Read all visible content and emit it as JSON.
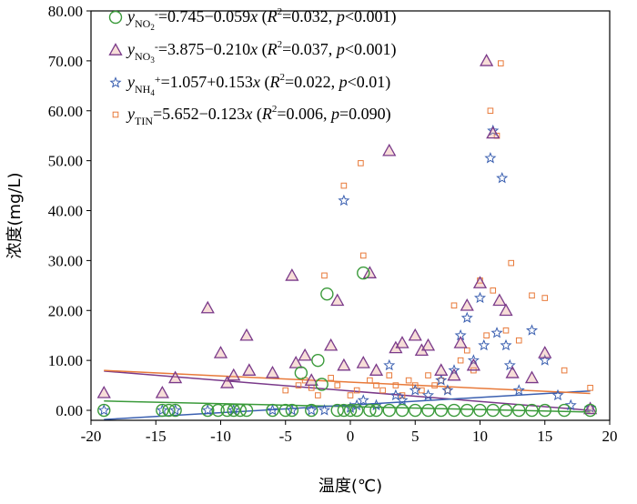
{
  "chart_data": {
    "type": "scatter",
    "xlabel": "温度(℃)",
    "ylabel": "浓度(mg/L)",
    "xlim": [
      -20,
      20
    ],
    "ylim": [
      -2,
      80
    ],
    "x_ticks": [
      -20,
      -15,
      -10,
      -5,
      0,
      5,
      10,
      15,
      20
    ],
    "x_tick_labels": [
      "-20",
      "-15",
      "-10",
      "-5",
      "0",
      "5",
      "10",
      "15",
      "20"
    ],
    "y_ticks": [
      0,
      10,
      20,
      30,
      40,
      50,
      60,
      70,
      80
    ],
    "y_tick_labels": [
      "0.00",
      "10.00",
      "20.00",
      "30.00",
      "40.00",
      "50.00",
      "60.00",
      "70.00",
      "80.00"
    ],
    "legend_placement": "top-left",
    "series": [
      {
        "key": "no2",
        "legend": {
          "y": "y",
          "sub": "NO",
          "sub2": "2",
          "sup": "-",
          "eq": "=0.745−0.059",
          "x": "x",
          "r2": "R",
          "r2sup": "2",
          "stat": "=0.032, ",
          "p": "p",
          "pstat": "<0.001)"
        },
        "color": "#3a9a3a",
        "marker": "circle",
        "fit": {
          "intercept": 0.745,
          "slope": -0.059,
          "x_range": [
            -19,
            18.5
          ]
        },
        "points": [
          [
            -19,
            0
          ],
          [
            -14.5,
            0
          ],
          [
            -14,
            0
          ],
          [
            -13.5,
            0
          ],
          [
            -11,
            0
          ],
          [
            -10.2,
            0
          ],
          [
            -9.5,
            0
          ],
          [
            -9,
            0
          ],
          [
            -8.5,
            0
          ],
          [
            -8,
            0
          ],
          [
            -6,
            0
          ],
          [
            -5,
            0
          ],
          [
            -4.5,
            0
          ],
          [
            -3.8,
            7.5
          ],
          [
            -3,
            0
          ],
          [
            -2.5,
            10
          ],
          [
            -2.2,
            5.2
          ],
          [
            -1.8,
            23.3
          ],
          [
            -1,
            0
          ],
          [
            -0.5,
            0
          ],
          [
            0,
            0
          ],
          [
            0.5,
            0
          ],
          [
            1,
            27.5
          ],
          [
            1.5,
            0
          ],
          [
            2,
            0
          ],
          [
            3,
            0
          ],
          [
            4,
            0
          ],
          [
            5,
            0
          ],
          [
            6,
            0
          ],
          [
            7,
            0
          ],
          [
            8,
            0
          ],
          [
            9,
            0
          ],
          [
            10,
            0
          ],
          [
            11,
            0
          ],
          [
            12,
            0
          ],
          [
            13,
            0
          ],
          [
            14,
            0
          ],
          [
            15,
            0
          ],
          [
            16.5,
            0
          ],
          [
            18.5,
            0
          ]
        ]
      },
      {
        "key": "no3",
        "legend": {
          "y": "y",
          "sub": "NO",
          "sub2": "3",
          "sup": "-",
          "eq": "=3.875−0.210",
          "x": "x",
          "r2": "R",
          "r2sup": "2",
          "stat": "=0.037, ",
          "p": "p",
          "pstat": "<0.001)"
        },
        "color": "#7a3a8a",
        "fill": "#e8a090",
        "marker": "triangle",
        "fit": {
          "intercept": 3.875,
          "slope": -0.21,
          "x_range": [
            -19,
            18.5
          ]
        },
        "points": [
          [
            -19,
            3.5
          ],
          [
            -14.5,
            3.5
          ],
          [
            -13.5,
            6.5
          ],
          [
            -11,
            20.5
          ],
          [
            -10,
            11.5
          ],
          [
            -9.5,
            5.5
          ],
          [
            -9,
            7
          ],
          [
            -8,
            15
          ],
          [
            -7.8,
            8
          ],
          [
            -6,
            7.5
          ],
          [
            -4.5,
            27
          ],
          [
            -4.2,
            9.5
          ],
          [
            -3.5,
            11
          ],
          [
            -3,
            6
          ],
          [
            -1.5,
            13
          ],
          [
            -1,
            22
          ],
          [
            -0.5,
            9
          ],
          [
            1,
            9.5
          ],
          [
            1.5,
            27.5
          ],
          [
            2,
            8
          ],
          [
            3,
            52
          ],
          [
            3.5,
            12.5
          ],
          [
            4,
            13.5
          ],
          [
            5,
            15
          ],
          [
            5.5,
            12
          ],
          [
            6,
            13
          ],
          [
            7,
            8
          ],
          [
            8,
            7
          ],
          [
            8.5,
            13.5
          ],
          [
            9,
            21
          ],
          [
            9.5,
            9
          ],
          [
            10,
            25.5
          ],
          [
            10.5,
            70
          ],
          [
            11,
            55.5
          ],
          [
            11.5,
            22
          ],
          [
            12,
            20
          ],
          [
            12.5,
            7.5
          ],
          [
            14,
            6.5
          ],
          [
            15,
            11.5
          ],
          [
            18.5,
            0.3
          ]
        ]
      },
      {
        "key": "nh4",
        "legend": {
          "y": "y",
          "sub": "NH",
          "sub2": "4",
          "sup": "+",
          "eq": "=1.057+0.153",
          "x": "x",
          "r2": "R",
          "r2sup": "2",
          "stat": "=0.022, ",
          "p": "p",
          "pstat": "<0.01)"
        },
        "color": "#3a5fb0",
        "marker": "star",
        "fit": {
          "intercept": 1.057,
          "slope": 0.153,
          "x_range": [
            -19,
            18.5
          ]
        },
        "points": [
          [
            -19,
            0
          ],
          [
            -14.5,
            0
          ],
          [
            -13.5,
            0
          ],
          [
            -11,
            0
          ],
          [
            -9,
            0
          ],
          [
            -6,
            0
          ],
          [
            -4.5,
            0
          ],
          [
            -3,
            0
          ],
          [
            -2,
            0
          ],
          [
            -0.5,
            42
          ],
          [
            0,
            0.5
          ],
          [
            0.5,
            1
          ],
          [
            1,
            2
          ],
          [
            2,
            1
          ],
          [
            3,
            9
          ],
          [
            3.5,
            3
          ],
          [
            4,
            2
          ],
          [
            5,
            4
          ],
          [
            6,
            3
          ],
          [
            7,
            6
          ],
          [
            7.5,
            4
          ],
          [
            8,
            8
          ],
          [
            8.5,
            15
          ],
          [
            9,
            18.5
          ],
          [
            9.5,
            10
          ],
          [
            10,
            22.5
          ],
          [
            10.3,
            13
          ],
          [
            10.8,
            50.5
          ],
          [
            11,
            56
          ],
          [
            11.3,
            15.5
          ],
          [
            11.7,
            46.5
          ],
          [
            12,
            13
          ],
          [
            12.3,
            9
          ],
          [
            13,
            4
          ],
          [
            14,
            16
          ],
          [
            15,
            10
          ],
          [
            16,
            3
          ],
          [
            17,
            1
          ],
          [
            18.5,
            0.5
          ]
        ]
      },
      {
        "key": "tin",
        "legend": {
          "y": "y",
          "sub": "TIN",
          "sub2": "",
          "sup": "",
          "eq": "=5.652−0.123",
          "x": "x",
          "r2": "R",
          "r2sup": "2",
          "stat": "=0.006, ",
          "p": "p",
          "pstat": "=0.090)"
        },
        "color": "#e87a3a",
        "marker": "square",
        "fit": {
          "intercept": 5.652,
          "slope": -0.123,
          "x_range": [
            -19,
            18.5
          ]
        },
        "points": [
          [
            -5,
            4
          ],
          [
            -4,
            5
          ],
          [
            -3.5,
            6
          ],
          [
            -3,
            4.5
          ],
          [
            -2.5,
            3
          ],
          [
            -2,
            27
          ],
          [
            -1.5,
            6.5
          ],
          [
            -1,
            5
          ],
          [
            -0.5,
            45
          ],
          [
            0,
            3
          ],
          [
            0.5,
            4
          ],
          [
            0.8,
            49.5
          ],
          [
            1,
            31
          ],
          [
            1.5,
            6
          ],
          [
            2,
            5
          ],
          [
            2.5,
            4
          ],
          [
            3,
            7
          ],
          [
            3.5,
            5
          ],
          [
            4,
            3
          ],
          [
            4.5,
            6
          ],
          [
            5,
            5
          ],
          [
            5.5,
            4
          ],
          [
            6,
            7
          ],
          [
            6.5,
            5
          ],
          [
            7,
            6
          ],
          [
            7.5,
            4
          ],
          [
            8,
            21
          ],
          [
            8.5,
            10
          ],
          [
            9,
            12
          ],
          [
            9.5,
            8
          ],
          [
            10,
            26
          ],
          [
            10.5,
            15
          ],
          [
            10.8,
            60
          ],
          [
            11,
            24
          ],
          [
            11.3,
            55
          ],
          [
            11.6,
            69.5
          ],
          [
            12,
            16
          ],
          [
            12.4,
            29.5
          ],
          [
            13,
            14
          ],
          [
            14,
            23
          ],
          [
            15,
            22.5
          ],
          [
            16.5,
            8
          ],
          [
            18.5,
            4.5
          ]
        ]
      }
    ]
  }
}
